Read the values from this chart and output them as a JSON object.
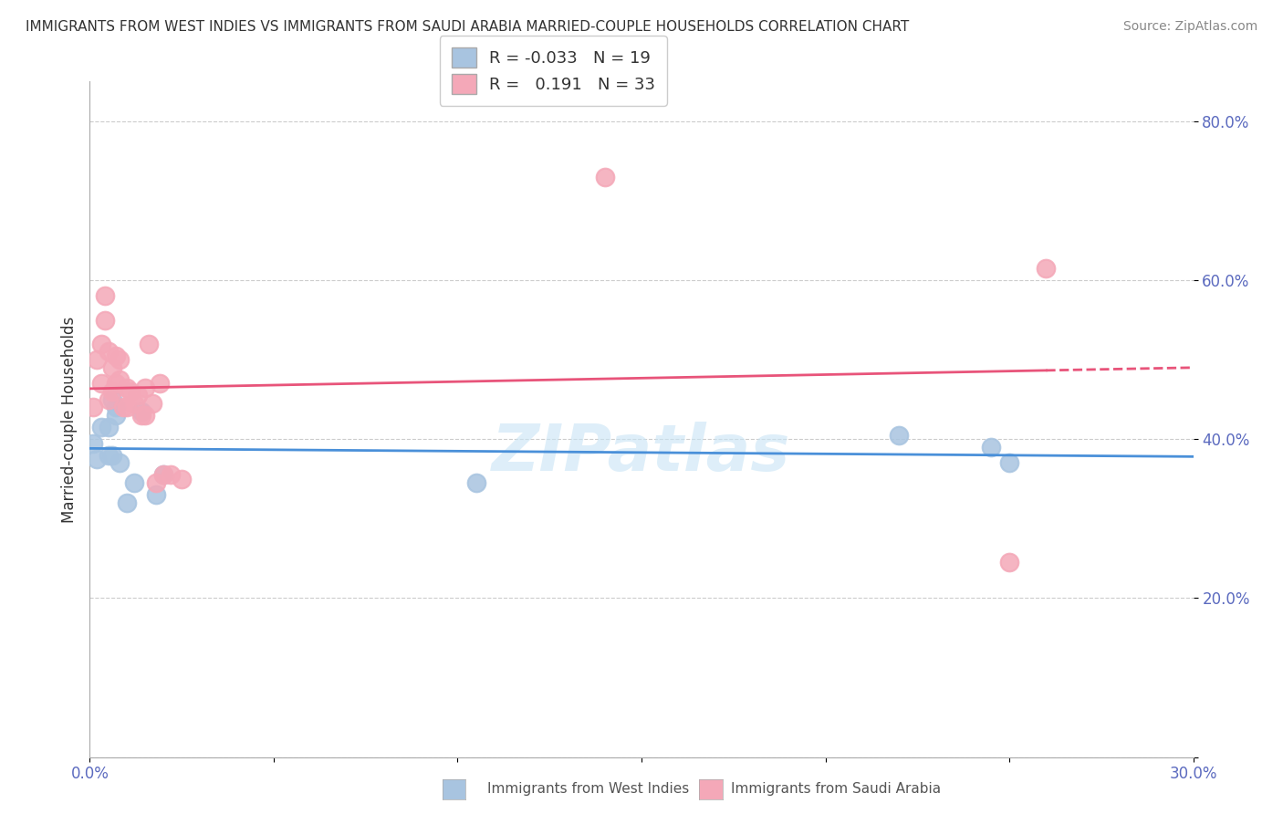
{
  "title": "IMMIGRANTS FROM WEST INDIES VS IMMIGRANTS FROM SAUDI ARABIA MARRIED-COUPLE HOUSEHOLDS CORRELATION CHART",
  "source": "Source: ZipAtlas.com",
  "ylabel": "Married-couple Households",
  "xlim": [
    0.0,
    0.3
  ],
  "ylim": [
    0.0,
    0.85
  ],
  "x_ticks": [
    0.0,
    0.05,
    0.1,
    0.15,
    0.2,
    0.25,
    0.3
  ],
  "x_tick_labels": [
    "0.0%",
    "",
    "",
    "",
    "",
    "",
    "30.0%"
  ],
  "y_ticks": [
    0.0,
    0.2,
    0.4,
    0.6,
    0.8
  ],
  "y_tick_labels": [
    "",
    "20.0%",
    "40.0%",
    "60.0%",
    "80.0%"
  ],
  "west_indies_R": "-0.033",
  "west_indies_N": 19,
  "saudi_arabia_R": "0.191",
  "saudi_arabia_N": 33,
  "blue_color": "#a8c4e0",
  "pink_color": "#f4a8b8",
  "blue_line_color": "#4a90d9",
  "pink_line_color": "#e8547a",
  "watermark": "ZIPatlas",
  "grid_color": "#cccccc",
  "west_indies_x": [
    0.001,
    0.002,
    0.003,
    0.005,
    0.005,
    0.006,
    0.006,
    0.007,
    0.007,
    0.008,
    0.01,
    0.012,
    0.014,
    0.018,
    0.02,
    0.105,
    0.22,
    0.245,
    0.25
  ],
  "west_indies_y": [
    0.395,
    0.375,
    0.415,
    0.38,
    0.415,
    0.45,
    0.38,
    0.43,
    0.44,
    0.37,
    0.32,
    0.345,
    0.435,
    0.33,
    0.355,
    0.345,
    0.405,
    0.39,
    0.37
  ],
  "saudi_arabia_x": [
    0.001,
    0.002,
    0.003,
    0.003,
    0.004,
    0.004,
    0.005,
    0.005,
    0.006,
    0.006,
    0.007,
    0.007,
    0.008,
    0.008,
    0.009,
    0.01,
    0.01,
    0.011,
    0.012,
    0.013,
    0.014,
    0.015,
    0.015,
    0.016,
    0.017,
    0.018,
    0.019,
    0.02,
    0.022,
    0.025,
    0.14,
    0.25,
    0.26
  ],
  "saudi_arabia_y": [
    0.44,
    0.5,
    0.47,
    0.52,
    0.55,
    0.58,
    0.45,
    0.51,
    0.46,
    0.49,
    0.47,
    0.505,
    0.475,
    0.5,
    0.44,
    0.465,
    0.44,
    0.46,
    0.445,
    0.455,
    0.43,
    0.465,
    0.43,
    0.52,
    0.445,
    0.345,
    0.47,
    0.355,
    0.355,
    0.35,
    0.73,
    0.245,
    0.615
  ]
}
